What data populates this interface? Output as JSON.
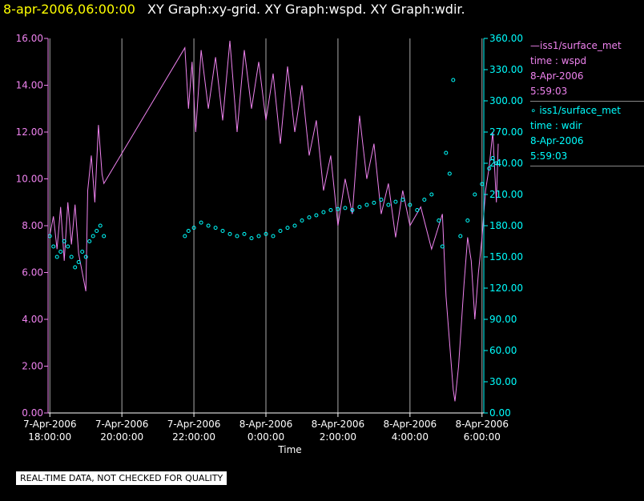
{
  "header": {
    "datetime": "8-apr-2006,06:00:00",
    "title": "XY Graph:xy-grid.  XY Graph:wspd.  XY Graph:wdir."
  },
  "colors": {
    "wspd": "#ee82ee",
    "wdir": "#00ffff",
    "grid": "#aaaaaa",
    "text": "#ffffff"
  },
  "legend": {
    "wspd": [
      "iss1/surface_met",
      "time : wspd",
      "8-Apr-2006",
      "5:59:03"
    ],
    "wdir": [
      "iss1/surface_met",
      "time : wdir",
      "8-Apr-2006",
      "5:59:03"
    ]
  },
  "notice": "REAL-TIME DATA, NOT CHECKED FOR QUALITY",
  "chart_data": {
    "type": "line",
    "xlabel": "Time",
    "x_unit": "hours",
    "xlim": [
      17.95,
      6.05
    ],
    "x_ticks": [
      {
        "value": 18,
        "date": "7-Apr-2006",
        "time": "18:00:00"
      },
      {
        "value": 20,
        "date": "7-Apr-2006",
        "time": "20:00:00"
      },
      {
        "value": 22,
        "date": "7-Apr-2006",
        "time": "22:00:00"
      },
      {
        "value": 0,
        "date": "8-Apr-2006",
        "time": "0:00:00"
      },
      {
        "value": 2,
        "date": "8-Apr-2006",
        "time": "2:00:00"
      },
      {
        "value": 4,
        "date": "8-Apr-2006",
        "time": "4:00:00"
      },
      {
        "value": 6,
        "date": "8-Apr-2006",
        "time": "6:00:00"
      }
    ],
    "y_left": {
      "min": 0,
      "max": 16,
      "ticks": [
        "0.00",
        "2.00",
        "4.00",
        "6.00",
        "8.00",
        "10.00",
        "12.00",
        "14.00",
        "16.00"
      ]
    },
    "y_right": {
      "min": 0,
      "max": 360,
      "ticks": [
        "0.00",
        "30.00",
        "60.00",
        "90.00",
        "120.00",
        "150.00",
        "180.00",
        "210.00",
        "240.00",
        "270.00",
        "300.00",
        "330.00",
        "360.00"
      ]
    },
    "series": [
      {
        "key": "wspd",
        "style": "line",
        "axis": "left",
        "points": [
          [
            18.0,
            7.6
          ],
          [
            18.1,
            8.4
          ],
          [
            18.2,
            7.0
          ],
          [
            18.3,
            8.8
          ],
          [
            18.4,
            6.5
          ],
          [
            18.5,
            9.0
          ],
          [
            18.6,
            7.2
          ],
          [
            18.7,
            8.9
          ],
          [
            18.8,
            6.8
          ],
          [
            19.0,
            5.2
          ],
          [
            19.05,
            9.5
          ],
          [
            19.15,
            11.0
          ],
          [
            19.25,
            9.0
          ],
          [
            19.35,
            12.3
          ],
          [
            19.45,
            10.2
          ],
          [
            19.5,
            9.8
          ],
          [
            21.75,
            15.6
          ],
          [
            21.85,
            13.0
          ],
          [
            21.95,
            15.0
          ],
          [
            22.05,
            12.0
          ],
          [
            22.2,
            15.5
          ],
          [
            22.4,
            13.0
          ],
          [
            22.6,
            15.2
          ],
          [
            22.8,
            12.5
          ],
          [
            23.0,
            15.9
          ],
          [
            23.2,
            12.0
          ],
          [
            23.4,
            15.5
          ],
          [
            23.6,
            13.0
          ],
          [
            23.8,
            15.0
          ],
          [
            24.0,
            12.5
          ],
          [
            24.2,
            14.5
          ],
          [
            24.4,
            11.5
          ],
          [
            24.6,
            14.8
          ],
          [
            24.8,
            12.0
          ],
          [
            25.0,
            14.0
          ],
          [
            25.2,
            11.0
          ],
          [
            25.4,
            12.5
          ],
          [
            25.6,
            9.5
          ],
          [
            25.8,
            11.0
          ],
          [
            26.0,
            8.0
          ],
          [
            26.2,
            10.0
          ],
          [
            26.4,
            8.5
          ],
          [
            26.6,
            12.7
          ],
          [
            26.8,
            10.0
          ],
          [
            27.0,
            11.5
          ],
          [
            27.2,
            8.5
          ],
          [
            27.4,
            9.8
          ],
          [
            27.6,
            7.5
          ],
          [
            27.8,
            9.5
          ],
          [
            28.0,
            8.0
          ],
          [
            28.3,
            8.8
          ],
          [
            28.6,
            7.0
          ],
          [
            28.9,
            8.5
          ],
          [
            29.0,
            5.0
          ],
          [
            29.1,
            3.0
          ],
          [
            29.2,
            1.0
          ],
          [
            29.25,
            0.5
          ],
          [
            29.35,
            2.0
          ],
          [
            29.5,
            5.5
          ],
          [
            29.6,
            7.5
          ],
          [
            29.7,
            6.5
          ],
          [
            29.8,
            4.0
          ],
          [
            29.9,
            6.0
          ],
          [
            30.0,
            7.5
          ],
          [
            30.1,
            9.5
          ],
          [
            30.2,
            10.5
          ],
          [
            30.3,
            12.0
          ],
          [
            30.4,
            9.0
          ],
          [
            30.45,
            11.5
          ]
        ]
      },
      {
        "key": "wdir",
        "style": "points",
        "axis": "right",
        "points": [
          [
            18.0,
            170
          ],
          [
            18.1,
            160
          ],
          [
            18.2,
            150
          ],
          [
            18.3,
            155
          ],
          [
            18.4,
            165
          ],
          [
            18.5,
            160
          ],
          [
            18.6,
            150
          ],
          [
            18.7,
            140
          ],
          [
            18.8,
            145
          ],
          [
            18.9,
            155
          ],
          [
            19.0,
            150
          ],
          [
            19.1,
            165
          ],
          [
            19.2,
            170
          ],
          [
            19.3,
            175
          ],
          [
            19.4,
            180
          ],
          [
            19.5,
            170
          ],
          [
            21.75,
            170
          ],
          [
            21.85,
            175
          ],
          [
            22.0,
            178
          ],
          [
            22.2,
            183
          ],
          [
            22.4,
            180
          ],
          [
            22.6,
            178
          ],
          [
            22.8,
            175
          ],
          [
            23.0,
            172
          ],
          [
            23.2,
            170
          ],
          [
            23.4,
            172
          ],
          [
            23.6,
            168
          ],
          [
            23.8,
            170
          ],
          [
            24.0,
            172
          ],
          [
            24.2,
            170
          ],
          [
            24.4,
            175
          ],
          [
            24.6,
            178
          ],
          [
            24.8,
            180
          ],
          [
            25.0,
            185
          ],
          [
            25.2,
            188
          ],
          [
            25.4,
            190
          ],
          [
            25.6,
            193
          ],
          [
            25.8,
            195
          ],
          [
            26.0,
            196
          ],
          [
            26.2,
            197
          ],
          [
            26.4,
            195
          ],
          [
            26.6,
            198
          ],
          [
            26.8,
            200
          ],
          [
            27.0,
            202
          ],
          [
            27.2,
            205
          ],
          [
            27.4,
            200
          ],
          [
            27.6,
            203
          ],
          [
            27.8,
            205
          ],
          [
            28.0,
            200
          ],
          [
            28.2,
            195
          ],
          [
            28.4,
            205
          ],
          [
            28.6,
            210
          ],
          [
            28.8,
            185
          ],
          [
            28.9,
            160
          ],
          [
            29.0,
            250
          ],
          [
            29.1,
            230
          ],
          [
            29.2,
            320
          ],
          [
            29.4,
            170
          ],
          [
            29.6,
            185
          ],
          [
            29.8,
            210
          ],
          [
            30.0,
            220
          ],
          [
            30.2,
            235
          ],
          [
            30.3,
            245
          ],
          [
            30.4,
            240
          ]
        ]
      }
    ]
  }
}
